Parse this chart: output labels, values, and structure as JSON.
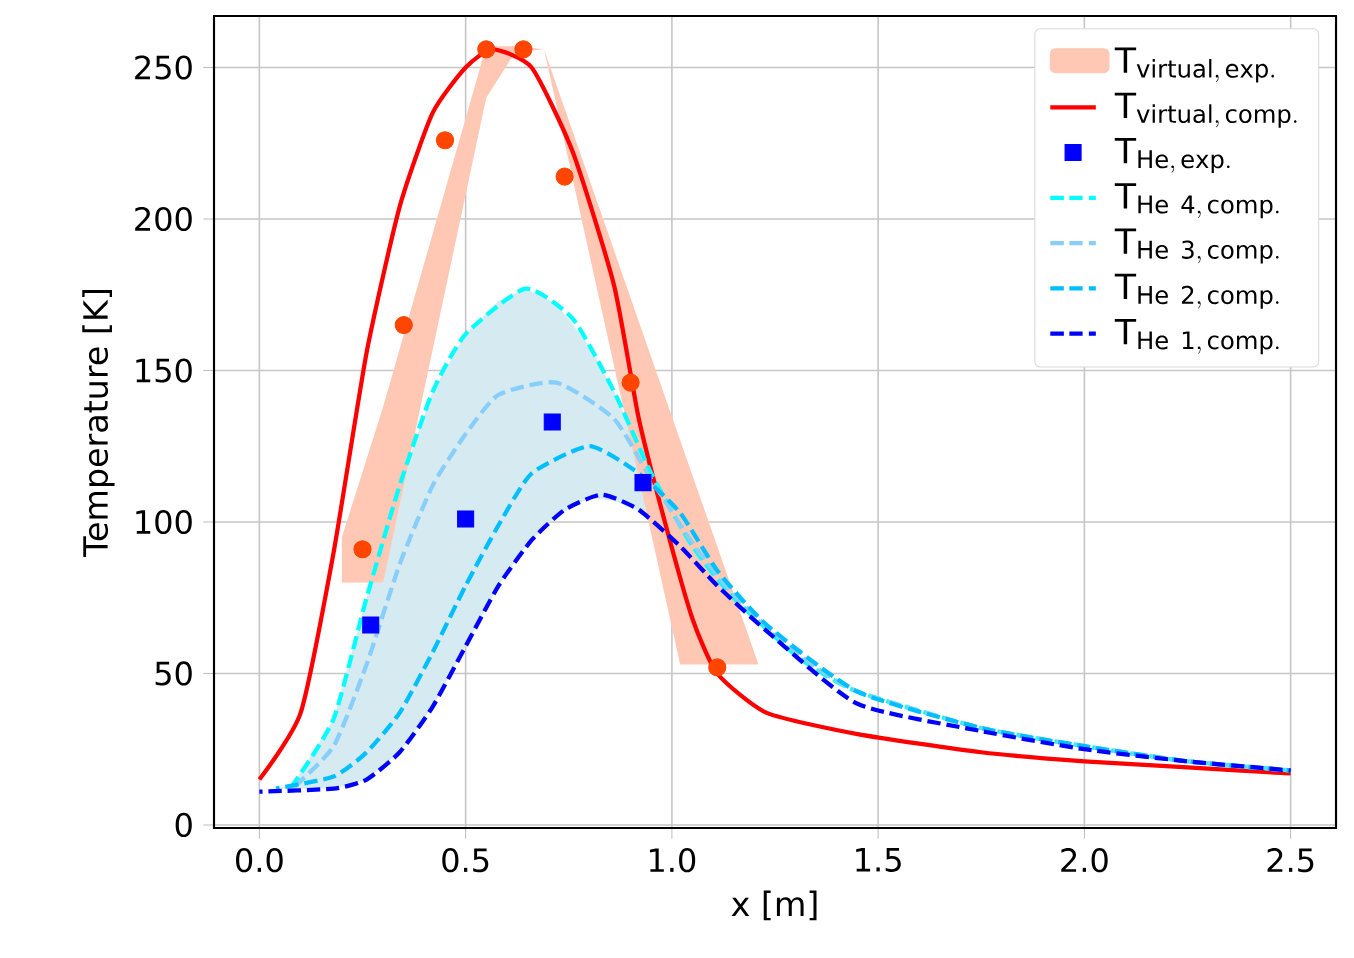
{
  "chart_data": {
    "type": "line",
    "xlabel": "x [m]",
    "ylabel": "Temperature [K]",
    "xlim": [
      -0.11,
      2.61
    ],
    "ylim": [
      -1,
      267
    ],
    "xticks": [
      {
        "value": 0,
        "label": "0.0"
      },
      {
        "value": 0.5,
        "label": "0.5"
      },
      {
        "value": 1,
        "label": "1.0"
      },
      {
        "value": 1.5,
        "label": "1.5"
      },
      {
        "value": 2,
        "label": "2.0"
      },
      {
        "value": 2.5,
        "label": "2.5"
      }
    ],
    "yticks": [
      0,
      50,
      100,
      150,
      200,
      250
    ],
    "grid": true,
    "legend": "top right",
    "series": [
      {
        "name": "\\mathrm{T}_{\\mathrm{virtual,\\,exp.}}",
        "color": "#ffc8b4",
        "x": [
          0.2,
          0.3,
          0.55,
          0.62,
          0.69,
          1.02,
          1.21
        ],
        "values": [
          null,
          null,
          null,
          null,
          null,
          null,
          null
        ],
        "lower": [
          80,
          80,
          240,
          255,
          256,
          53,
          53
        ],
        "upper": [
          95,
          138,
          257,
          257,
          256,
          127,
          53
        ]
      },
      {
        "name": "\\mathrm{T}_{\\mathrm{virtual,\\,comp.}}",
        "color": "#ff0000",
        "line_style": "solid",
        "marker": "none",
        "x": [
          0,
          0.1,
          0.18,
          0.26,
          0.34,
          0.42,
          0.5,
          0.565,
          0.66,
          0.76,
          0.86,
          0.92,
          0.985,
          1.05,
          1.11,
          1.23,
          1.45,
          1.75,
          2.0,
          2.25,
          2.5
        ],
        "values": [
          15,
          37,
          90,
          156,
          204,
          235,
          250,
          256,
          250,
          222,
          178,
          134,
          99,
          68,
          50,
          37,
          30,
          24,
          21,
          19,
          17
        ]
      },
      {
        "type": "scatter",
        "color": "#ff4500",
        "marker": "circle",
        "x": [
          0.25,
          0.35,
          0.45,
          0.55,
          0.64,
          0.74,
          0.9,
          1.11
        ],
        "values": [
          91,
          165,
          226,
          256,
          256,
          214,
          146,
          52
        ]
      },
      {
        "type": "scatter",
        "name": "\\mathrm{T}_{\\mathrm{He,\\,exp.}}",
        "color": "#0000ff",
        "marker": "square",
        "x": [
          0.27,
          0.5,
          0.71,
          0.93
        ],
        "values": [
          66,
          101,
          133,
          113
        ]
      },
      {
        "name": "\\mathrm{T}_{\\mathrm{He\\ 4,\\,comp.}}",
        "color": "#00ffff",
        "line_style": "dashed",
        "marker": "none",
        "x": [
          0.08,
          0.18,
          0.26,
          0.34,
          0.42,
          0.5,
          0.645,
          0.76,
          0.86,
          0.95,
          1.05,
          1.15,
          1.31,
          1.45,
          1.75,
          2.0,
          2.25,
          2.5
        ],
        "values": [
          13,
          35,
          75,
          112,
          143,
          162,
          177,
          167,
          143,
          116,
          92,
          75,
          55,
          44,
          32,
          26,
          21,
          18
        ]
      },
      {
        "name": "\\mathrm{T}_{\\mathrm{He\\ 3,\\,comp.}}",
        "color": "#87cefa",
        "line_style": "dashed",
        "marker": "none",
        "x": [
          0.08,
          0.18,
          0.26,
          0.34,
          0.42,
          0.5,
          0.58,
          0.72,
          0.86,
          0.95,
          1.05,
          1.15,
          1.31,
          1.45,
          1.75,
          2.0,
          2.25,
          2.5
        ],
        "values": [
          12,
          26,
          53,
          86,
          112,
          129,
          142,
          146,
          134,
          114,
          93,
          76,
          56,
          44,
          32,
          26,
          21,
          18
        ]
      },
      {
        "name": "\\mathrm{T}_{\\mathrm{He\\ 2,\\,comp.}}",
        "color": "#00bfff",
        "line_style": "dashed",
        "marker": "none",
        "x": [
          0.04,
          0.18,
          0.26,
          0.34,
          0.42,
          0.5,
          0.58,
          0.66,
          0.8,
          0.92,
          1.02,
          1.11,
          1.23,
          1.45,
          1.75,
          2.0,
          2.25,
          2.5
        ],
        "values": [
          12,
          16,
          24,
          37,
          57,
          79,
          99,
          116,
          125,
          116,
          103,
          84,
          66,
          44,
          32,
          26,
          21,
          18
        ]
      },
      {
        "name": "\\mathrm{T}_{\\mathrm{He\\ 1,\\,comp.}}",
        "color": "#0000ff",
        "line_style": "dashed",
        "marker": "none",
        "x": [
          0,
          0.18,
          0.26,
          0.34,
          0.42,
          0.5,
          0.58,
          0.66,
          0.74,
          0.83,
          0.92,
          1.02,
          1.11,
          1.23,
          1.45,
          1.75,
          2.0,
          2.25,
          2.5
        ],
        "values": [
          11,
          12,
          15,
          24,
          39,
          59,
          79,
          94,
          104,
          109,
          104,
          92,
          79,
          64,
          40,
          31,
          25,
          21,
          18
        ]
      },
      {
        "color": "#d6eaf2",
        "x": [
          0.04,
          0.08,
          0.18,
          0.26,
          0.34,
          0.42,
          0.5,
          0.58,
          0.645,
          0.72,
          0.8,
          0.86,
          0.95
        ],
        "values": [
          null,
          null,
          null,
          null,
          null,
          null,
          null,
          null,
          null,
          null,
          null,
          null,
          null
        ],
        "lower": [
          12,
          12,
          12,
          15,
          24,
          39,
          59,
          79,
          92,
          102,
          108,
          107,
          102
        ],
        "upper": [
          12,
          13,
          35,
          75,
          112,
          143,
          162,
          173,
          177,
          172,
          158,
          143,
          116
        ]
      }
    ]
  }
}
